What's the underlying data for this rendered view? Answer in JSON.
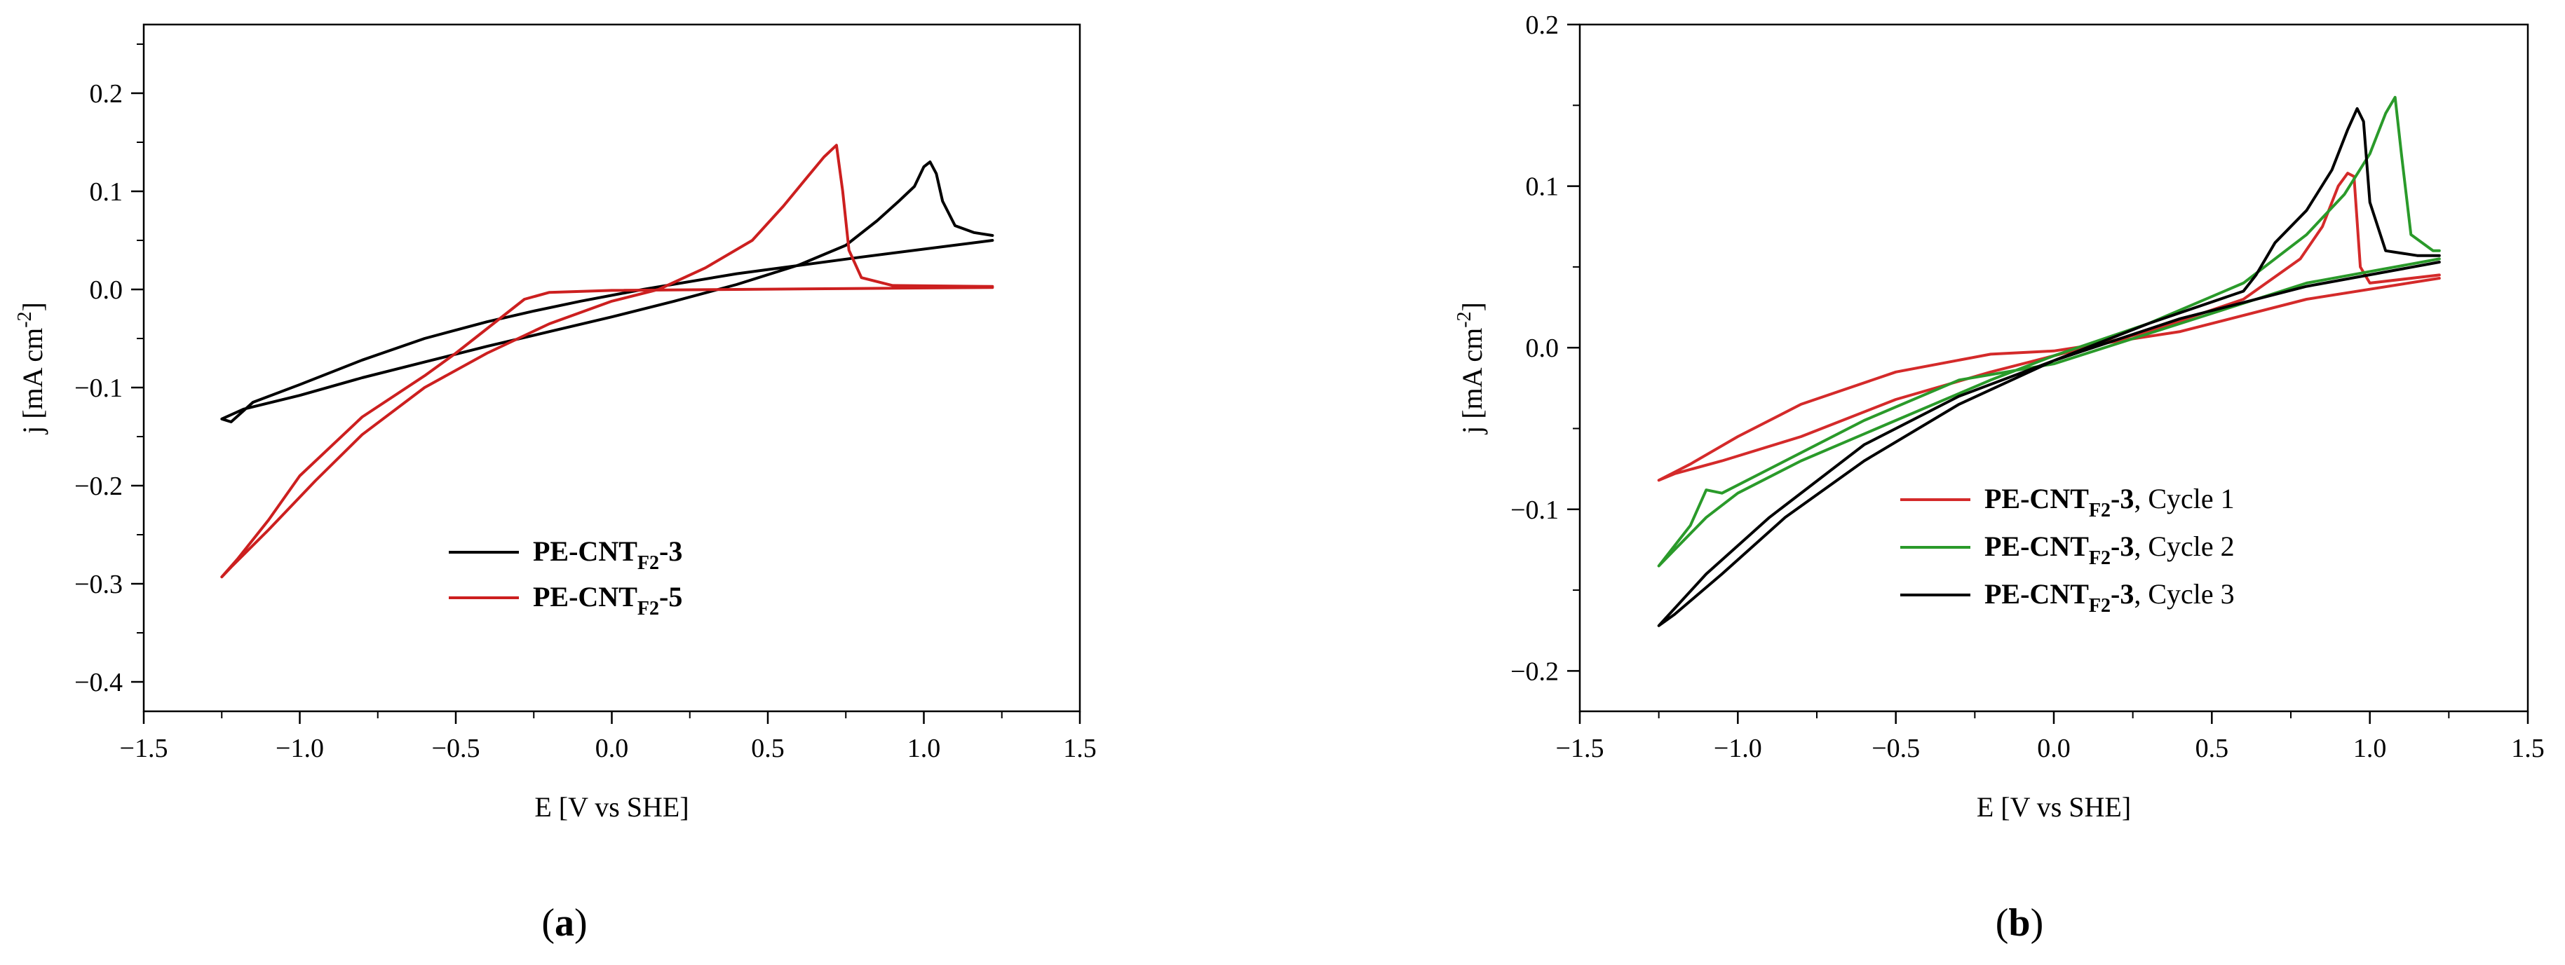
{
  "chart_data": [
    {
      "type": "line",
      "panel_label": "a",
      "xlabel": "E [V vs SHE]",
      "ylabel_main": "j [mA cm",
      "ylabel_sup": "-2",
      "ylabel_end": "]",
      "xlim": [
        -1.5,
        1.5
      ],
      "ylim": [
        -0.43,
        0.27
      ],
      "xticks": [
        -1.5,
        -1.0,
        -0.5,
        0.0,
        0.5,
        1.0,
        1.5
      ],
      "xtick_labels": [
        "−1.5",
        "−1.0",
        "−0.5",
        "0.0",
        "0.5",
        "1.0",
        "1.5"
      ],
      "yticks": [
        -0.4,
        -0.3,
        -0.2,
        -0.1,
        0.0,
        0.1,
        0.2
      ],
      "ytick_labels": [
        "−0.4",
        "−0.3",
        "−0.2",
        "−0.1",
        "0.0",
        "0.1",
        "0.2"
      ],
      "grid": false,
      "legend_position": "lower-right",
      "series": [
        {
          "name": "PE-CNT",
          "name_sub": "F2",
          "name_suffix": "-3",
          "color": "#000000",
          "points": [
            [
              1.22,
              0.05
            ],
            [
              0.8,
              0.033
            ],
            [
              0.4,
              0.016
            ],
            [
              0.1,
              0.0
            ],
            [
              -0.1,
              -0.012
            ],
            [
              -0.25,
              -0.022
            ],
            [
              -0.4,
              -0.033
            ],
            [
              -0.6,
              -0.05
            ],
            [
              -0.8,
              -0.072
            ],
            [
              -1.0,
              -0.097
            ],
            [
              -1.15,
              -0.115
            ],
            [
              -1.22,
              -0.135
            ],
            [
              -1.25,
              -0.132
            ],
            [
              -1.18,
              -0.122
            ],
            [
              -1.0,
              -0.108
            ],
            [
              -0.8,
              -0.09
            ],
            [
              -0.6,
              -0.074
            ],
            [
              -0.4,
              -0.058
            ],
            [
              -0.2,
              -0.043
            ],
            [
              0.0,
              -0.028
            ],
            [
              0.2,
              -0.012
            ],
            [
              0.4,
              0.005
            ],
            [
              0.6,
              0.025
            ],
            [
              0.75,
              0.045
            ],
            [
              0.85,
              0.07
            ],
            [
              0.92,
              0.09
            ],
            [
              0.97,
              0.105
            ],
            [
              1.0,
              0.125
            ],
            [
              1.02,
              0.13
            ],
            [
              1.04,
              0.118
            ],
            [
              1.06,
              0.09
            ],
            [
              1.1,
              0.065
            ],
            [
              1.16,
              0.058
            ],
            [
              1.22,
              0.055
            ]
          ]
        },
        {
          "name": "PE-CNT",
          "name_sub": "F2",
          "name_suffix": "-5",
          "color": "#cc1f1f",
          "points": [
            [
              1.22,
              0.002
            ],
            [
              0.8,
              0.001
            ],
            [
              0.4,
              0.0
            ],
            [
              0.0,
              -0.001
            ],
            [
              -0.2,
              -0.003
            ],
            [
              -0.28,
              -0.01
            ],
            [
              -0.4,
              -0.04
            ],
            [
              -0.5,
              -0.065
            ],
            [
              -0.6,
              -0.088
            ],
            [
              -0.8,
              -0.13
            ],
            [
              -1.0,
              -0.19
            ],
            [
              -1.1,
              -0.235
            ],
            [
              -1.2,
              -0.275
            ],
            [
              -1.25,
              -0.293
            ],
            [
              -1.22,
              -0.283
            ],
            [
              -1.1,
              -0.245
            ],
            [
              -0.95,
              -0.195
            ],
            [
              -0.8,
              -0.148
            ],
            [
              -0.6,
              -0.1
            ],
            [
              -0.4,
              -0.065
            ],
            [
              -0.2,
              -0.035
            ],
            [
              0.0,
              -0.012
            ],
            [
              0.15,
              0.0
            ],
            [
              0.3,
              0.022
            ],
            [
              0.45,
              0.05
            ],
            [
              0.55,
              0.085
            ],
            [
              0.62,
              0.112
            ],
            [
              0.68,
              0.135
            ],
            [
              0.72,
              0.147
            ],
            [
              0.74,
              0.1
            ],
            [
              0.76,
              0.04
            ],
            [
              0.8,
              0.012
            ],
            [
              0.9,
              0.004
            ],
            [
              1.22,
              0.003
            ]
          ]
        }
      ]
    },
    {
      "type": "line",
      "panel_label": "b",
      "xlabel": "E [V vs SHE]",
      "ylabel_main": "j [mA cm",
      "ylabel_sup": "-2",
      "ylabel_end": "]",
      "xlim": [
        -1.5,
        1.5
      ],
      "ylim": [
        -0.225,
        0.2
      ],
      "xticks": [
        -1.5,
        -1.0,
        -0.5,
        0.0,
        0.5,
        1.0,
        1.5
      ],
      "xtick_labels": [
        "−1.5",
        "−1.0",
        "−0.5",
        "0.0",
        "0.5",
        "1.0",
        "1.5"
      ],
      "yticks": [
        -0.2,
        -0.1,
        0.0,
        0.1,
        0.2
      ],
      "ytick_labels": [
        "−0.2",
        "−0.1",
        "0.0",
        "0.1",
        "0.2"
      ],
      "grid": false,
      "legend_position": "lower-right",
      "series": [
        {
          "name": "PE-CNT",
          "name_sub": "F2",
          "name_suffix": "-3",
          "name_tail": ", Cycle 1",
          "color": "#d42a2a",
          "points": [
            [
              1.22,
              0.043
            ],
            [
              0.8,
              0.03
            ],
            [
              0.4,
              0.01
            ],
            [
              0.0,
              -0.002
            ],
            [
              -0.2,
              -0.004
            ],
            [
              -0.5,
              -0.015
            ],
            [
              -0.8,
              -0.035
            ],
            [
              -1.0,
              -0.055
            ],
            [
              -1.15,
              -0.072
            ],
            [
              -1.25,
              -0.082
            ],
            [
              -1.2,
              -0.078
            ],
            [
              -1.05,
              -0.07
            ],
            [
              -0.8,
              -0.055
            ],
            [
              -0.5,
              -0.032
            ],
            [
              -0.2,
              -0.015
            ],
            [
              0.0,
              -0.005
            ],
            [
              0.3,
              0.01
            ],
            [
              0.6,
              0.03
            ],
            [
              0.78,
              0.055
            ],
            [
              0.85,
              0.075
            ],
            [
              0.9,
              0.1
            ],
            [
              0.93,
              0.108
            ],
            [
              0.95,
              0.106
            ],
            [
              0.97,
              0.05
            ],
            [
              1.0,
              0.04
            ],
            [
              1.22,
              0.045
            ]
          ]
        },
        {
          "name": "PE-CNT",
          "name_sub": "F2",
          "name_suffix": "-3",
          "name_tail": ", Cycle 2",
          "color": "#2a9a2a",
          "points": [
            [
              1.22,
              0.055
            ],
            [
              0.8,
              0.04
            ],
            [
              0.4,
              0.015
            ],
            [
              0.0,
              -0.01
            ],
            [
              -0.3,
              -0.02
            ],
            [
              -0.6,
              -0.045
            ],
            [
              -0.9,
              -0.075
            ],
            [
              -1.05,
              -0.09
            ],
            [
              -1.1,
              -0.088
            ],
            [
              -1.15,
              -0.11
            ],
            [
              -1.25,
              -0.135
            ],
            [
              -1.2,
              -0.125
            ],
            [
              -1.1,
              -0.105
            ],
            [
              -1.0,
              -0.09
            ],
            [
              -0.8,
              -0.07
            ],
            [
              -0.5,
              -0.045
            ],
            [
              -0.2,
              -0.02
            ],
            [
              0.0,
              -0.005
            ],
            [
              0.3,
              0.015
            ],
            [
              0.6,
              0.04
            ],
            [
              0.8,
              0.07
            ],
            [
              0.92,
              0.095
            ],
            [
              1.0,
              0.12
            ],
            [
              1.05,
              0.145
            ],
            [
              1.08,
              0.155
            ],
            [
              1.1,
              0.12
            ],
            [
              1.13,
              0.07
            ],
            [
              1.2,
              0.06
            ],
            [
              1.22,
              0.06
            ]
          ]
        },
        {
          "name": "PE-CNT",
          "name_sub": "F2",
          "name_suffix": "-3",
          "name_tail": ", Cycle 3",
          "color": "#000000",
          "points": [
            [
              1.22,
              0.053
            ],
            [
              0.8,
              0.038
            ],
            [
              0.4,
              0.018
            ],
            [
              0.0,
              -0.008
            ],
            [
              -0.3,
              -0.03
            ],
            [
              -0.6,
              -0.06
            ],
            [
              -0.9,
              -0.105
            ],
            [
              -1.1,
              -0.14
            ],
            [
              -1.25,
              -0.172
            ],
            [
              -1.2,
              -0.165
            ],
            [
              -1.05,
              -0.14
            ],
            [
              -0.85,
              -0.105
            ],
            [
              -0.6,
              -0.07
            ],
            [
              -0.3,
              -0.035
            ],
            [
              0.0,
              -0.008
            ],
            [
              0.3,
              0.015
            ],
            [
              0.6,
              0.035
            ],
            [
              0.64,
              0.045
            ],
            [
              0.7,
              0.065
            ],
            [
              0.8,
              0.085
            ],
            [
              0.88,
              0.11
            ],
            [
              0.93,
              0.135
            ],
            [
              0.96,
              0.148
            ],
            [
              0.98,
              0.14
            ],
            [
              1.0,
              0.09
            ],
            [
              1.05,
              0.06
            ],
            [
              1.15,
              0.057
            ],
            [
              1.22,
              0.057
            ]
          ]
        }
      ]
    }
  ]
}
